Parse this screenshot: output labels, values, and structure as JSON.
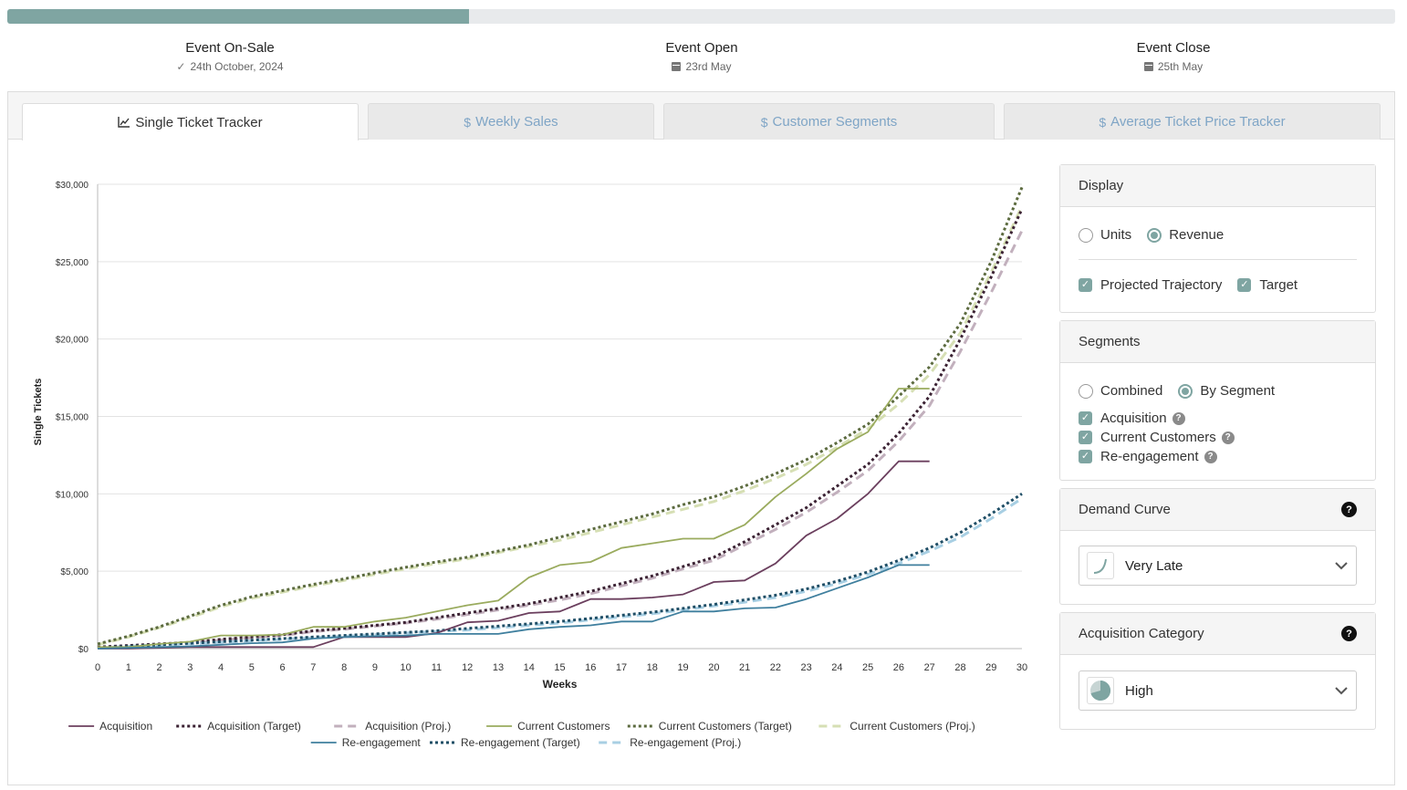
{
  "progress": {
    "fraction": 0.333
  },
  "milestones": [
    {
      "title": "Event On-Sale",
      "date": "24th October, 2024",
      "icon": "check-icon"
    },
    {
      "title": "Event Open",
      "date": "23rd May",
      "icon": "calendar-icon"
    },
    {
      "title": "Event Close",
      "date": "25th May",
      "icon": "calendar-icon"
    }
  ],
  "tabs": [
    {
      "label": "Single Ticket Tracker",
      "icon": "line-chart-icon",
      "active": true
    },
    {
      "label": "Weekly Sales",
      "icon": "dollar-icon",
      "active": false
    },
    {
      "label": "Customer Segments",
      "icon": "dollar-icon",
      "active": false
    },
    {
      "label": "Average Ticket Price Tracker",
      "icon": "dollar-icon",
      "active": false
    }
  ],
  "display": {
    "title": "Display",
    "mode_options": [
      "Units",
      "Revenue"
    ],
    "mode_selected": "Revenue",
    "projected_label": "Projected Trajectory",
    "target_label": "Target"
  },
  "segments": {
    "title": "Segments",
    "view_options": [
      "Combined",
      "By Segment"
    ],
    "view_selected": "By Segment",
    "items": [
      "Acquisition",
      "Current Customers",
      "Re-engagement"
    ]
  },
  "demand_curve": {
    "title": "Demand Curve",
    "value": "Very Late",
    "help": "?"
  },
  "acquisition_category": {
    "title": "Acquisition Category",
    "value": "High",
    "help": "?"
  },
  "colors": {
    "accent": "#7fa5a2",
    "acquisition": "#6b3f5e",
    "acquisition_proj": "#c2b0bd",
    "current": "#9aab5e",
    "current_target": "#5c6b3f",
    "current_proj": "#d6dfb4",
    "reengagement": "#3f7f9e",
    "reengagement_target": "#1f4e66",
    "reengagement_proj": "#a8cfe3"
  },
  "chart_data": {
    "type": "line",
    "xlabel": "Weeks",
    "ylabel": "Single Tickets",
    "xlim": [
      0,
      30
    ],
    "ylim": [
      0,
      30000
    ],
    "x_ticks": [
      0,
      1,
      2,
      3,
      4,
      5,
      6,
      7,
      8,
      9,
      10,
      11,
      12,
      13,
      14,
      15,
      16,
      17,
      18,
      19,
      20,
      21,
      22,
      23,
      24,
      25,
      26,
      27,
      28,
      29,
      30
    ],
    "y_ticks": [
      0,
      5000,
      10000,
      15000,
      20000,
      25000,
      30000
    ],
    "y_tick_labels": [
      "$0",
      "$5,000",
      "$10,000",
      "$15,000",
      "$20,000",
      "$25,000",
      "$30,000"
    ],
    "grid": true,
    "legend_position": "bottom",
    "series": [
      {
        "name": "Acquisition",
        "style": "solid",
        "color": "#6b3f5e",
        "x": [
          0,
          1,
          2,
          3,
          4,
          5,
          6,
          7,
          8,
          9,
          10,
          11,
          12,
          13,
          14,
          15,
          16,
          17,
          18,
          19,
          20,
          21,
          22,
          23,
          24,
          25,
          26,
          27
        ],
        "values": [
          0,
          0,
          50,
          100,
          100,
          100,
          100,
          100,
          750,
          750,
          750,
          1000,
          1700,
          1800,
          2300,
          2400,
          3200,
          3200,
          3300,
          3500,
          4300,
          4400,
          5500,
          7300,
          8400,
          10000,
          12100,
          12100
        ]
      },
      {
        "name": "Acquisition (Target)",
        "style": "dotted",
        "color": "#3b2233",
        "x": [
          0,
          1,
          2,
          3,
          4,
          5,
          6,
          7,
          8,
          9,
          10,
          11,
          12,
          13,
          14,
          15,
          16,
          17,
          18,
          19,
          20,
          21,
          22,
          23,
          24,
          25,
          26,
          27,
          28,
          29,
          30
        ],
        "values": [
          100,
          200,
          300,
          400,
          600,
          750,
          900,
          1150,
          1300,
          1500,
          1700,
          2000,
          2300,
          2600,
          2900,
          3300,
          3700,
          4200,
          4700,
          5300,
          5900,
          6900,
          8000,
          9100,
          10500,
          11900,
          13900,
          16300,
          20000,
          24000,
          28400
        ]
      },
      {
        "name": "Acquisition (Proj.)",
        "style": "dashed",
        "color": "#c2b0bd",
        "x": [
          0,
          1,
          2,
          3,
          4,
          5,
          6,
          7,
          8,
          9,
          10,
          11,
          12,
          13,
          14,
          15,
          16,
          17,
          18,
          19,
          20,
          21,
          22,
          23,
          24,
          25,
          26,
          27,
          28,
          29,
          30
        ],
        "values": [
          50,
          150,
          250,
          350,
          550,
          700,
          850,
          1100,
          1250,
          1450,
          1650,
          1900,
          2200,
          2500,
          2800,
          3150,
          3550,
          4050,
          4550,
          5150,
          5700,
          6700,
          7700,
          8800,
          10100,
          11500,
          13400,
          15700,
          19200,
          23000,
          27000
        ]
      },
      {
        "name": "Current Customers",
        "style": "solid",
        "color": "#9aab5e",
        "x": [
          0,
          1,
          2,
          3,
          4,
          5,
          6,
          7,
          8,
          9,
          10,
          11,
          12,
          13,
          14,
          15,
          16,
          17,
          18,
          19,
          20,
          21,
          22,
          23,
          24,
          25,
          26,
          27
        ],
        "values": [
          100,
          100,
          300,
          450,
          850,
          850,
          900,
          1400,
          1400,
          1750,
          2000,
          2400,
          2800,
          3100,
          4600,
          5400,
          5600,
          6500,
          6800,
          7100,
          7100,
          8000,
          9800,
          11300,
          12900,
          14000,
          16800,
          16800
        ]
      },
      {
        "name": "Current Customers (Target)",
        "style": "dotted",
        "color": "#5c6b3f",
        "x": [
          0,
          1,
          2,
          3,
          4,
          5,
          6,
          7,
          8,
          9,
          10,
          11,
          12,
          13,
          14,
          15,
          16,
          17,
          18,
          19,
          20,
          21,
          22,
          23,
          24,
          25,
          26,
          27,
          28,
          29,
          30
        ],
        "values": [
          300,
          800,
          1400,
          2100,
          2800,
          3350,
          3750,
          4150,
          4500,
          4900,
          5250,
          5600,
          5900,
          6300,
          6700,
          7200,
          7700,
          8200,
          8700,
          9300,
          9800,
          10500,
          11300,
          12200,
          13300,
          14500,
          16300,
          18200,
          21000,
          25000,
          29800
        ]
      },
      {
        "name": "Current Customers (Proj.)",
        "style": "dashed",
        "color": "#d6dfb4",
        "x": [
          0,
          1,
          2,
          3,
          4,
          5,
          6,
          7,
          8,
          9,
          10,
          11,
          12,
          13,
          14,
          15,
          16,
          17,
          18,
          19,
          20,
          21,
          22,
          23,
          24,
          25,
          26,
          27,
          28,
          29,
          30
        ],
        "values": [
          250,
          750,
          1350,
          2000,
          2700,
          3250,
          3650,
          4050,
          4400,
          4800,
          5150,
          5500,
          5800,
          6200,
          6600,
          7000,
          7500,
          8000,
          8500,
          9000,
          9500,
          10200,
          11000,
          11900,
          13000,
          14200,
          15800,
          17700,
          20400,
          24300,
          28600
        ]
      },
      {
        "name": "Re-engagement",
        "style": "solid",
        "color": "#3f7f9e",
        "x": [
          0,
          1,
          2,
          3,
          4,
          5,
          6,
          7,
          8,
          9,
          10,
          11,
          12,
          13,
          14,
          15,
          16,
          17,
          18,
          19,
          20,
          21,
          22,
          23,
          24,
          25,
          26,
          27
        ],
        "values": [
          0,
          50,
          100,
          150,
          250,
          350,
          400,
          650,
          750,
          800,
          850,
          950,
          950,
          950,
          1250,
          1400,
          1500,
          1750,
          1750,
          2400,
          2400,
          2600,
          2650,
          3200,
          3900,
          4600,
          5400,
          5400
        ]
      },
      {
        "name": "Re-engagement (Target)",
        "style": "dotted",
        "color": "#1f4e66",
        "x": [
          0,
          1,
          2,
          3,
          4,
          5,
          6,
          7,
          8,
          9,
          10,
          11,
          12,
          13,
          14,
          15,
          16,
          17,
          18,
          19,
          20,
          21,
          22,
          23,
          24,
          25,
          26,
          27,
          28,
          29,
          30
        ],
        "values": [
          50,
          150,
          250,
          350,
          450,
          550,
          650,
          750,
          850,
          950,
          1050,
          1150,
          1300,
          1450,
          1600,
          1750,
          1950,
          2150,
          2350,
          2600,
          2850,
          3150,
          3450,
          3850,
          4350,
          4950,
          5700,
          6500,
          7500,
          8700,
          10000
        ]
      },
      {
        "name": "Re-engagement (Proj.)",
        "style": "dashed",
        "color": "#a8cfe3",
        "x": [
          0,
          1,
          2,
          3,
          4,
          5,
          6,
          7,
          8,
          9,
          10,
          11,
          12,
          13,
          14,
          15,
          16,
          17,
          18,
          19,
          20,
          21,
          22,
          23,
          24,
          25,
          26,
          27,
          28,
          29,
          30
        ],
        "values": [
          50,
          150,
          250,
          300,
          400,
          500,
          600,
          700,
          800,
          900,
          1000,
          1100,
          1200,
          1350,
          1500,
          1650,
          1850,
          2050,
          2250,
          2500,
          2750,
          3000,
          3300,
          3700,
          4200,
          4800,
          5500,
          6300,
          7200,
          8400,
          9700
        ]
      }
    ]
  }
}
